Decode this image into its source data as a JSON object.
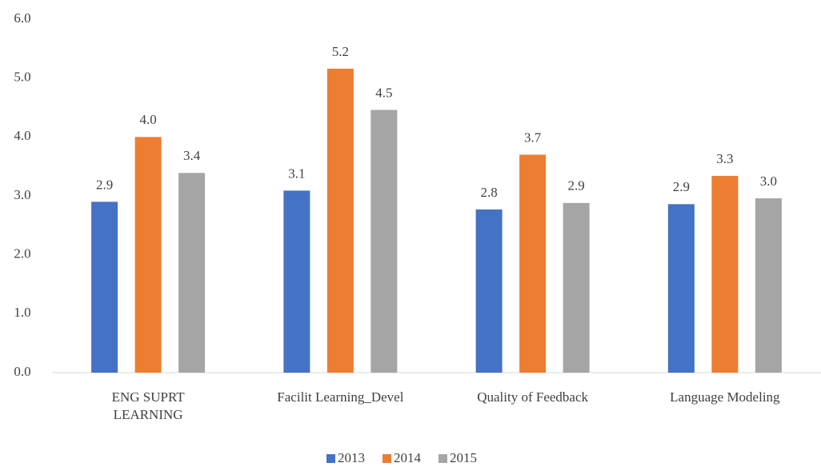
{
  "chart_data": {
    "type": "bar",
    "categories": [
      "ENG SUPRT\nLEARNING",
      "Facilit Learning_Devel",
      "Quality of Feedback",
      "Language Modeling"
    ],
    "series": [
      {
        "name": "2013",
        "color": "#4472c4",
        "values": [
          2.9,
          3.09,
          2.77,
          2.86
        ],
        "value_labels": [
          "2.9",
          "3.1",
          "2.8",
          "2.9"
        ]
      },
      {
        "name": "2014",
        "color": "#ed7d31",
        "values": [
          4.0,
          5.16,
          3.7,
          3.34
        ],
        "value_labels": [
          "4.0",
          "5.2",
          "3.7",
          "3.3"
        ]
      },
      {
        "name": "2015",
        "color": "#a5a5a5",
        "values": [
          3.39,
          4.46,
          2.88,
          2.96
        ],
        "value_labels": [
          "3.4",
          "4.5",
          "2.9",
          "3.0"
        ]
      }
    ],
    "ylim": [
      0,
      6
    ],
    "yticks": [
      {
        "value": 0,
        "label": "0.0"
      },
      {
        "value": 1,
        "label": "1.0"
      },
      {
        "value": 2,
        "label": "2.0"
      },
      {
        "value": 3,
        "label": "3.0"
      },
      {
        "value": 4,
        "label": "4.0"
      },
      {
        "value": 5,
        "label": "5.0"
      },
      {
        "value": 6,
        "label": "6.0"
      }
    ],
    "grid": false,
    "legend": "bottom"
  }
}
